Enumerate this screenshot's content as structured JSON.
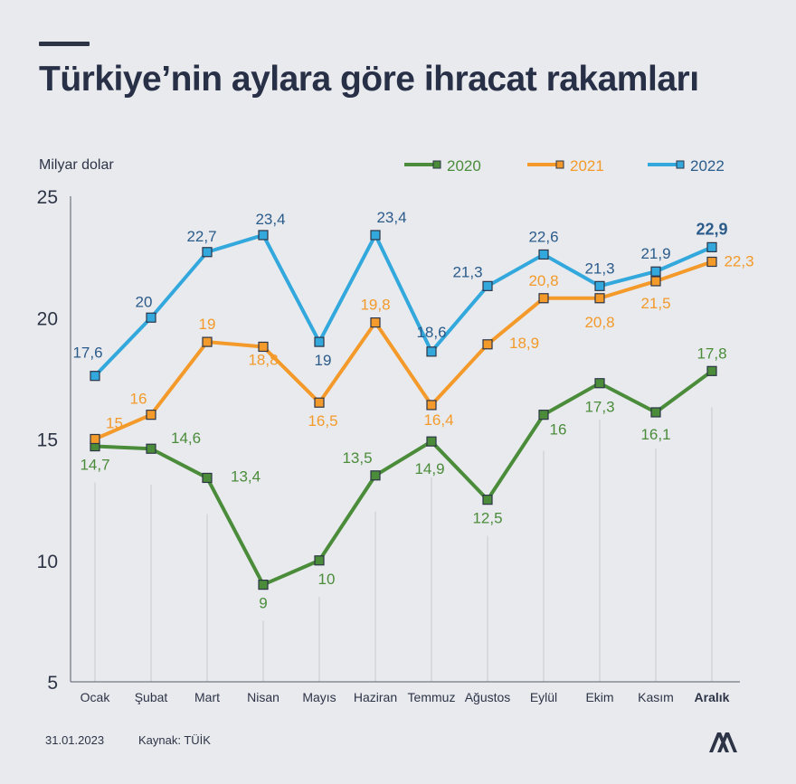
{
  "title": "Türkiye’nin aylara göre ihracat rakamları",
  "footer": {
    "date": "31.01.2023",
    "source": "Kaynak: TÜİK",
    "logo_text": "AA"
  },
  "colors": {
    "2020": "#4a8c3a",
    "2021": "#f39a2a",
    "2022": "#33a8dc",
    "value_2022": "#2a5b8a",
    "text": "#2c3446",
    "axis": "#555c6a"
  },
  "chart_data": {
    "type": "line",
    "title": "Türkiye’nin aylara göre ihracat rakamları",
    "ylabel": "Milyar dolar",
    "xlabel": "",
    "ylim": [
      5,
      25
    ],
    "yticks": [
      "5",
      "10",
      "15",
      "20",
      "25"
    ],
    "grid": false,
    "legend_position": "top-right",
    "categories": [
      "Ocak",
      "Şubat",
      "Mart",
      "Nisan",
      "Mayıs",
      "Haziran",
      "Temmuz",
      "Ağustos",
      "Eylül",
      "Ekim",
      "Kasım",
      "Aralık"
    ],
    "series": [
      {
        "name": "2020",
        "values": [
          14.7,
          14.6,
          13.4,
          9,
          10,
          13.5,
          14.9,
          12.5,
          16,
          17.3,
          16.1,
          17.8
        ],
        "labels": [
          "14,7",
          "14,6",
          "13,4",
          "9",
          "10",
          "13,5",
          "14,9",
          "12,5",
          "16",
          "17,3",
          "16,1",
          "17,8"
        ]
      },
      {
        "name": "2021",
        "values": [
          15,
          16,
          19,
          18.8,
          16.5,
          19.8,
          16.4,
          18.9,
          20.8,
          20.8,
          21.5,
          22.3
        ],
        "labels": [
          "15",
          "16",
          "19",
          "18,8",
          "16,5",
          "19,8",
          "16,4",
          "18,9",
          "20,8",
          "20,8",
          "21,5",
          "22,3"
        ]
      },
      {
        "name": "2022",
        "values": [
          17.6,
          20,
          22.7,
          23.4,
          19,
          23.4,
          18.6,
          21.3,
          22.6,
          21.3,
          21.9,
          22.9
        ],
        "labels": [
          "17,6",
          "20",
          "22,7",
          "23,4",
          "19",
          "23,4",
          "18,6",
          "21,3",
          "22,6",
          "21,3",
          "21,9",
          "22,9"
        ]
      }
    ]
  }
}
